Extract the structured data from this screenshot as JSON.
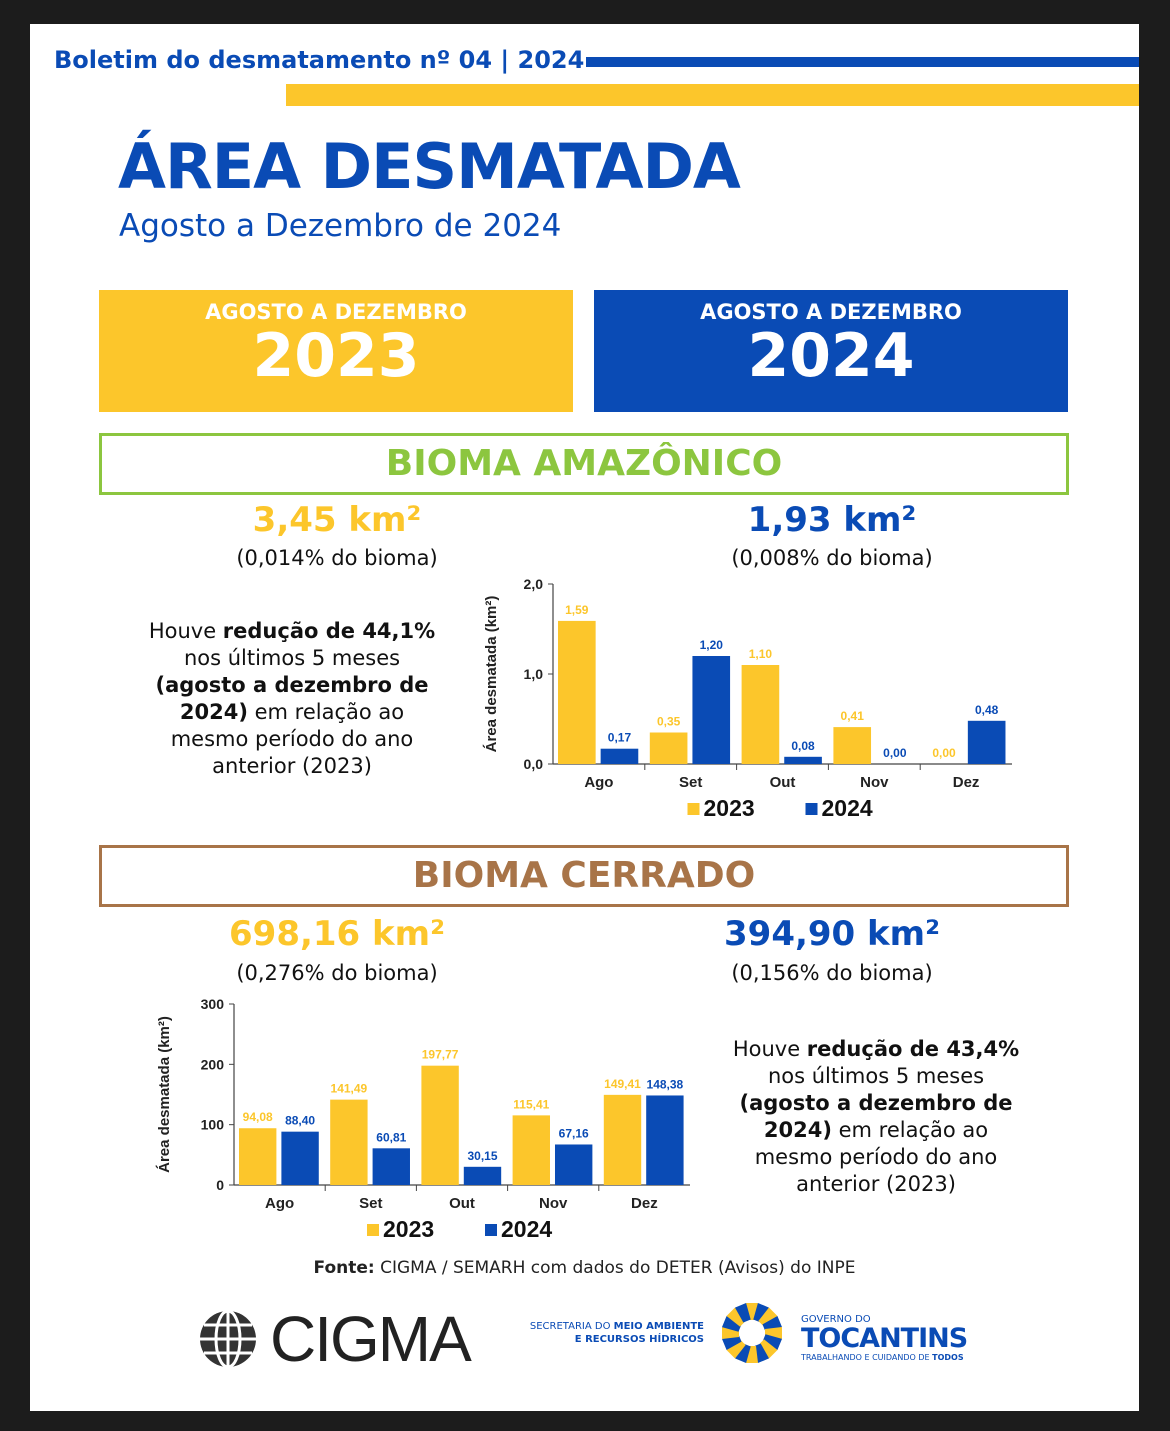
{
  "header": {
    "bulletin": "Boletim do desmatamento nº 04 | 2024",
    "title": "ÁREA DESMATADA",
    "subtitle": "Agosto a Dezembro de 2024"
  },
  "periods": [
    {
      "label": "AGOSTO A DEZEMBRO",
      "year": "2023"
    },
    {
      "label": "AGOSTO A DEZEMBRO",
      "year": "2024"
    }
  ],
  "colors": {
    "y2023": "#fcc62b",
    "y2024": "#0a4bb5",
    "amazon": "#8cc63f",
    "cerrado": "#a87448"
  },
  "amazon": {
    "title": "BIOMA AMAZÔNICO",
    "v2023": "3,45 km²",
    "p2023": "(0,014% do bioma)",
    "v2024": "1,93 km²",
    "p2024": "(0,008% do bioma)",
    "note": {
      "a": "Houve ",
      "b": "redução de 44,1%",
      "c": " nos últimos 5 meses ",
      "d": "(agosto a dezembro de 2024)",
      "e": " em relação ao mesmo período do ano anterior (2023)"
    }
  },
  "cerrado": {
    "title": "BIOMA CERRADO",
    "v2023": "698,16 km²",
    "p2023": "(0,276% do bioma)",
    "v2024": "394,90 km²",
    "p2024": "(0,156% do bioma)",
    "note": {
      "a": "Houve ",
      "b": "redução de 43,4%",
      "c": " nos últimos 5 meses ",
      "d": "(agosto a dezembro de 2024)",
      "e": " em relação ao mesmo período do ano anterior (2023)"
    }
  },
  "chart_data": [
    {
      "type": "bar",
      "ylabel": "Área desmatada (km²)",
      "categories": [
        "Ago",
        "Set",
        "Out",
        "Nov",
        "Dez"
      ],
      "ylim": [
        0,
        2
      ],
      "yticks": [
        "0,0",
        "1,0",
        "2,0"
      ],
      "ytick_values": [
        0,
        1,
        2
      ],
      "series": [
        {
          "name": "2023",
          "values": [
            1.59,
            0.35,
            1.1,
            0.41,
            0.0
          ],
          "labels": [
            "1,59",
            "0,35",
            "1,10",
            "0,41",
            "0,00"
          ]
        },
        {
          "name": "2024",
          "values": [
            0.17,
            1.2,
            0.08,
            0.0,
            0.48
          ],
          "labels": [
            "0,17",
            "1,20",
            "0,08",
            "0,00",
            "0,48"
          ]
        }
      ],
      "legend": "bottom"
    },
    {
      "type": "bar",
      "ylabel": "Área desmatada (km²)",
      "categories": [
        "Ago",
        "Set",
        "Out",
        "Nov",
        "Dez"
      ],
      "ylim": [
        0,
        300
      ],
      "yticks": [
        "0",
        "100",
        "200",
        "300"
      ],
      "ytick_values": [
        0,
        100,
        200,
        300
      ],
      "series": [
        {
          "name": "2023",
          "values": [
            94.08,
            141.49,
            197.77,
            115.41,
            149.41
          ],
          "labels": [
            "94,08",
            "141,49",
            "197,77",
            "115,41",
            "149,41"
          ]
        },
        {
          "name": "2024",
          "values": [
            88.4,
            60.81,
            30.15,
            67.16,
            148.38
          ],
          "labels": [
            "88,40",
            "60,81",
            "30,15",
            "67,16",
            "148,38"
          ]
        }
      ],
      "legend": "bottom"
    }
  ],
  "footer": {
    "source_label": "Fonte:",
    "source": " CIGMA / SEMARH com dados do DETER (Avisos) do INPE",
    "cigma": "CIGMA",
    "semarh1a": "SECRETARIA DO ",
    "semarh1b": "MEIO AMBIENTE",
    "semarh2": "E RECURSOS HÍDRICOS",
    "gov1": "GOVERNO DO",
    "gov2": "TOCANTINS",
    "gov3a": "TRABALHANDO E CUIDANDO DE ",
    "gov3b": "TODOS"
  }
}
